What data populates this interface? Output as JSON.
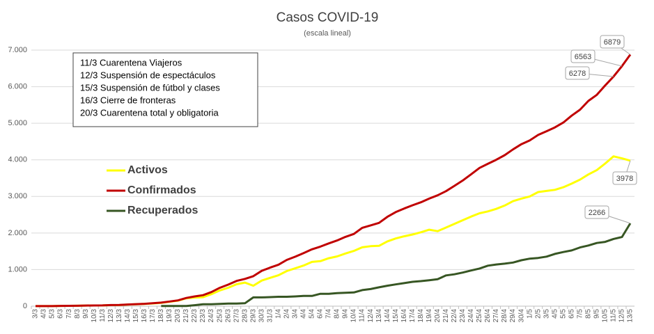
{
  "chart_data": {
    "type": "line",
    "title": "Casos COVID-19",
    "subtitle": "(escala lineal)",
    "annotations": [
      "11/3 Cuarentena Viajeros",
      "12/3 Suspensión de espectáculos",
      "15/3 Suspensión de fútbol y clases",
      "16/3 Cierre de fronteras",
      "20/3 Cuarentena total y obligatoria"
    ],
    "categories": [
      "3/3",
      "4/3",
      "5/3",
      "6/3",
      "7/3",
      "8/3",
      "9/3",
      "10/3",
      "11/3",
      "12/3",
      "13/3",
      "14/3",
      "15/3",
      "16/3",
      "17/3",
      "18/3",
      "19/3",
      "20/3",
      "21/3",
      "22/3",
      "23/3",
      "24/3",
      "25/3",
      "26/3",
      "27/3",
      "28/3",
      "29/3",
      "30/3",
      "31/3",
      "1/4",
      "2/4",
      "3/4",
      "4/4",
      "5/4",
      "6/4",
      "7/4",
      "8/4",
      "9/4",
      "10/4",
      "11/4",
      "12/4",
      "13/4",
      "14/4",
      "15/4",
      "16/4",
      "17/4",
      "18/4",
      "19/4",
      "20/4",
      "21/4",
      "22/4",
      "23/4",
      "24/4",
      "25/4",
      "26/4",
      "27/4",
      "28/4",
      "29/4",
      "30/4",
      "1/5",
      "2/5",
      "3/5",
      "4/5",
      "5/5",
      "6/5",
      "7/5",
      "8/5",
      "9/5",
      "10/5",
      "11/5",
      "12/5",
      "13/5"
    ],
    "series": [
      {
        "name": "Activos",
        "color": "#ffff00",
        "values": [
          1,
          1,
          2,
          8,
          9,
          12,
          17,
          19,
          20,
          29,
          31,
          42,
          52,
          61,
          75,
          90,
          120,
          150,
          215,
          235,
          245,
          330,
          430,
          505,
          600,
          645,
          560,
          700,
          775,
          845,
          960,
          1035,
          1110,
          1210,
          1230,
          1310,
          1360,
          1440,
          1510,
          1610,
          1640,
          1650,
          1770,
          1850,
          1910,
          1960,
          2020,
          2090,
          2050,
          2150,
          2250,
          2350,
          2450,
          2540,
          2590,
          2660,
          2750,
          2870,
          2940,
          3000,
          3120,
          3150,
          3180,
          3250,
          3350,
          3460,
          3600,
          3720,
          3900,
          4095,
          4040,
          3978
        ]
      },
      {
        "name": "Confirmados",
        "color": "#c00000",
        "values": [
          1,
          1,
          2,
          8,
          9,
          12,
          17,
          19,
          21,
          31,
          34,
          45,
          56,
          65,
          79,
          97,
          128,
          158,
          225,
          266,
          301,
          387,
          502,
          589,
          690,
          745,
          820,
          966,
          1054,
          1133,
          1265,
          1353,
          1451,
          1554,
          1628,
          1715,
          1795,
          1894,
          1975,
          2142,
          2208,
          2277,
          2443,
          2571,
          2669,
          2758,
          2839,
          2941,
          3031,
          3144,
          3288,
          3435,
          3607,
          3780,
          3892,
          4003,
          4127,
          4285,
          4428,
          4532,
          4681,
          4783,
          4887,
          5020,
          5208,
          5371,
          5611,
          5776,
          6034,
          6278,
          6563,
          6879
        ]
      },
      {
        "name": "Recuperados",
        "color": "#375623",
        "values": [
          null,
          null,
          null,
          null,
          null,
          null,
          null,
          null,
          null,
          null,
          null,
          null,
          null,
          null,
          null,
          3,
          3,
          3,
          3,
          27,
          52,
          52,
          63,
          72,
          72,
          80,
          240,
          240,
          248,
          256,
          256,
          266,
          279,
          280,
          338,
          338,
          358,
          365,
          375,
          440,
          468,
          515,
          559,
          596,
          630,
          666,
          685,
          709,
          737,
          840,
          872,
          919,
          976,
          1030,
          1107,
          1140,
          1162,
          1192,
          1256,
          1299,
          1318,
          1354,
          1429,
          1480,
          1523,
          1605,
          1659,
          1728,
          1757,
          1837,
          1890,
          2266
        ]
      }
    ],
    "ylim": [
      0,
      7000
    ],
    "yticks": [
      0,
      {
        "value": 1000,
        "label": "1.000"
      },
      {
        "value": 2000,
        "label": "2.000"
      },
      {
        "value": 3000,
        "label": "3.000"
      },
      {
        "value": 4000,
        "label": "4.000"
      },
      {
        "value": 5000,
        "label": "5.000"
      },
      {
        "value": 6000,
        "label": "6.000"
      },
      {
        "value": 7000,
        "label": "7.000"
      }
    ],
    "grid": true
  }
}
